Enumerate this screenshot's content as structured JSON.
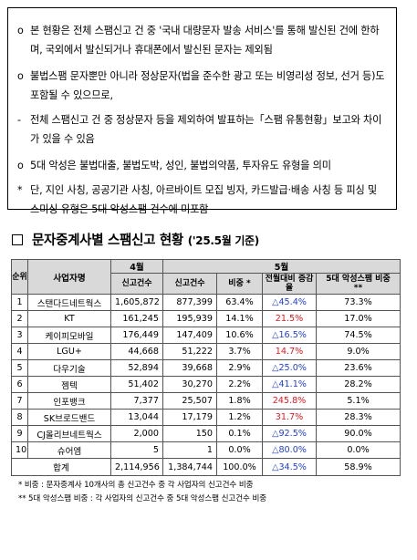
{
  "notes": [
    {
      "bullet": "o",
      "text": "본 현황은 전체 스팸신고 건 중 '국내 대량문자 발송 서비스'를 통해 발신된 건에 한하며, 국외에서 발신되거나 휴대폰에서 발신된 문자는 제외됨"
    },
    {
      "bullet": "o",
      "text": "불법스팸 문자뿐만 아니라 정상문자(법을 준수한 광고 또는 비영리성 정보, 선거 등)도 포함될 수 있으므로,"
    },
    {
      "bullet": "-",
      "text": "전체 스팸신고 건 중 정상문자 등을 제외하여 발표하는「스팸 유통현황」보고와 차이가 있을 수 있음"
    },
    {
      "bullet": "o",
      "text": "5대 악성은 불법대출, 불법도박, 성인, 불법의약품, 투자유도 유형을 의미"
    },
    {
      "bullet": "*",
      "text": "단, 지인 사칭, 공공기관 사칭, 아르바이트 모집 빙자, 카드발급·배송 사칭 등 피싱 및 스미싱 유형은 5대 악성스팸 건수에 미포함"
    }
  ],
  "section": {
    "title": "문자중계사별 스팸신고 현황",
    "as_of": "('25.5월 기준)"
  },
  "table": {
    "headers": {
      "rank": "순위",
      "company": "사업자명",
      "april": "4월",
      "may": "5월",
      "april_count": "신고건수",
      "may_count": "신고건수",
      "share": "비중 *",
      "mom": "전월대비 증감율",
      "top5": "5대 악성스팸 비중 **"
    },
    "rows": [
      {
        "rank": "1",
        "name": "스탠다드네트웍스",
        "apr": "1,605,872",
        "may": "877,399",
        "share": "63.4%",
        "mom": "△45.4%",
        "mom_dir": "down",
        "top5": "73.3%"
      },
      {
        "rank": "2",
        "name": "KT",
        "apr": "161,245",
        "may": "195,939",
        "share": "14.1%",
        "mom": "21.5%",
        "mom_dir": "up",
        "top5": "17.0%"
      },
      {
        "rank": "3",
        "name": "케이피모바일",
        "apr": "176,449",
        "may": "147,409",
        "share": "10.6%",
        "mom": "△16.5%",
        "mom_dir": "down",
        "top5": "74.5%"
      },
      {
        "rank": "4",
        "name": "LGU+",
        "apr": "44,668",
        "may": "51,222",
        "share": "3.7%",
        "mom": "14.7%",
        "mom_dir": "up",
        "top5": "9.0%"
      },
      {
        "rank": "5",
        "name": "다우기술",
        "apr": "52,894",
        "may": "39,668",
        "share": "2.9%",
        "mom": "△25.0%",
        "mom_dir": "down",
        "top5": "23.6%"
      },
      {
        "rank": "6",
        "name": "젬텍",
        "apr": "51,402",
        "may": "30,270",
        "share": "2.2%",
        "mom": "△41.1%",
        "mom_dir": "down",
        "top5": "28.2%"
      },
      {
        "rank": "7",
        "name": "인포뱅크",
        "apr": "7,377",
        "may": "25,507",
        "share": "1.8%",
        "mom": "245.8%",
        "mom_dir": "up",
        "top5": "5.1%"
      },
      {
        "rank": "8",
        "name": "SK브로드밴드",
        "apr": "13,044",
        "may": "17,179",
        "share": "1.2%",
        "mom": "31.7%",
        "mom_dir": "up",
        "top5": "28.3%"
      },
      {
        "rank": "9",
        "name": "CJ올리브네트웍스",
        "apr": "2,000",
        "may": "150",
        "share": "0.1%",
        "mom": "△92.5%",
        "mom_dir": "down",
        "top5": "90.0%"
      },
      {
        "rank": "10",
        "name": "슈어엠",
        "apr": "5",
        "may": "1",
        "share": "0.0%",
        "mom": "△80.0%",
        "mom_dir": "down",
        "top5": "0.0%"
      }
    ],
    "total": {
      "label": "합계",
      "apr": "2,114,956",
      "may": "1,384,744",
      "share": "100.0%",
      "mom": "△34.5%",
      "mom_dir": "down",
      "top5": "58.9%"
    }
  },
  "footnotes": [
    "* 비중 : 문자중계사 10개사의 총 신고건수 중 각 사업자의 신고건수 비중",
    "** 5대 악성스팸 비중 : 각 사업자의 신고건수 중 5대 악성스팸 신고건수 비중"
  ],
  "colors": {
    "up": "#e8161b",
    "down": "#1f3fd6",
    "header_bg": "#d9d9d9"
  }
}
